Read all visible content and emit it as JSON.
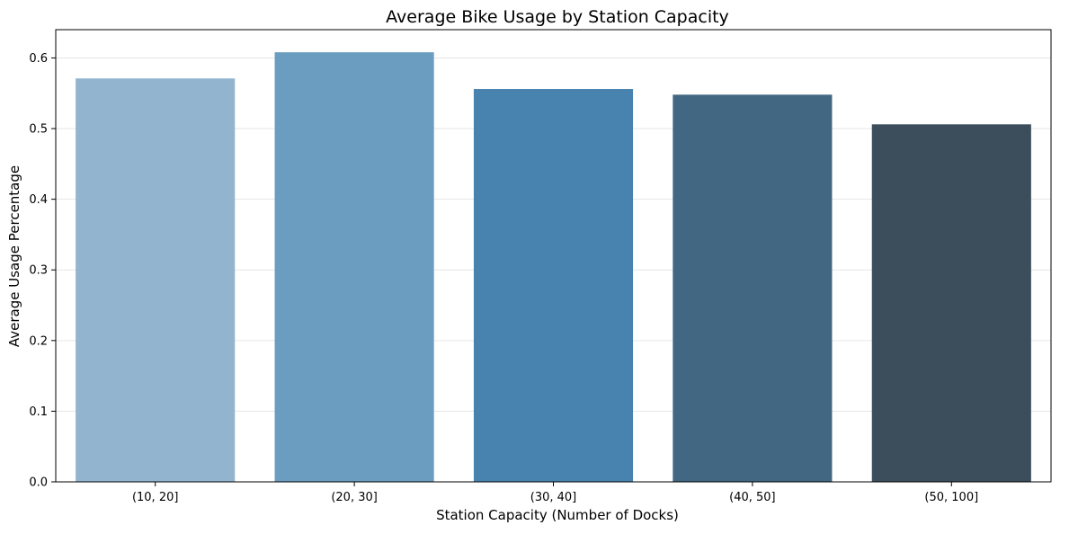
{
  "chart_data": {
    "type": "bar",
    "title": "Average Bike Usage by Station Capacity",
    "xlabel": "Station Capacity (Number of Docks)",
    "ylabel": "Average Usage Percentage",
    "categories": [
      "(10, 20]",
      "(20, 30]",
      "(30, 40]",
      "(40, 50]",
      "(50, 100]"
    ],
    "values": [
      0.571,
      0.608,
      0.556,
      0.548,
      0.506
    ],
    "colors": [
      "#92b4cf",
      "#6a9dbf",
      "#4883b0",
      "#426783",
      "#3c4e5b"
    ],
    "ylim": [
      0,
      0.64
    ],
    "yticks": [
      0.0,
      0.1,
      0.2,
      0.3,
      0.4,
      0.5,
      0.6
    ],
    "ytick_labels": [
      "0.0",
      "0.1",
      "0.2",
      "0.3",
      "0.4",
      "0.5",
      "0.6"
    ],
    "grid": "horizontal",
    "grid_color": "#e6e6e6"
  }
}
